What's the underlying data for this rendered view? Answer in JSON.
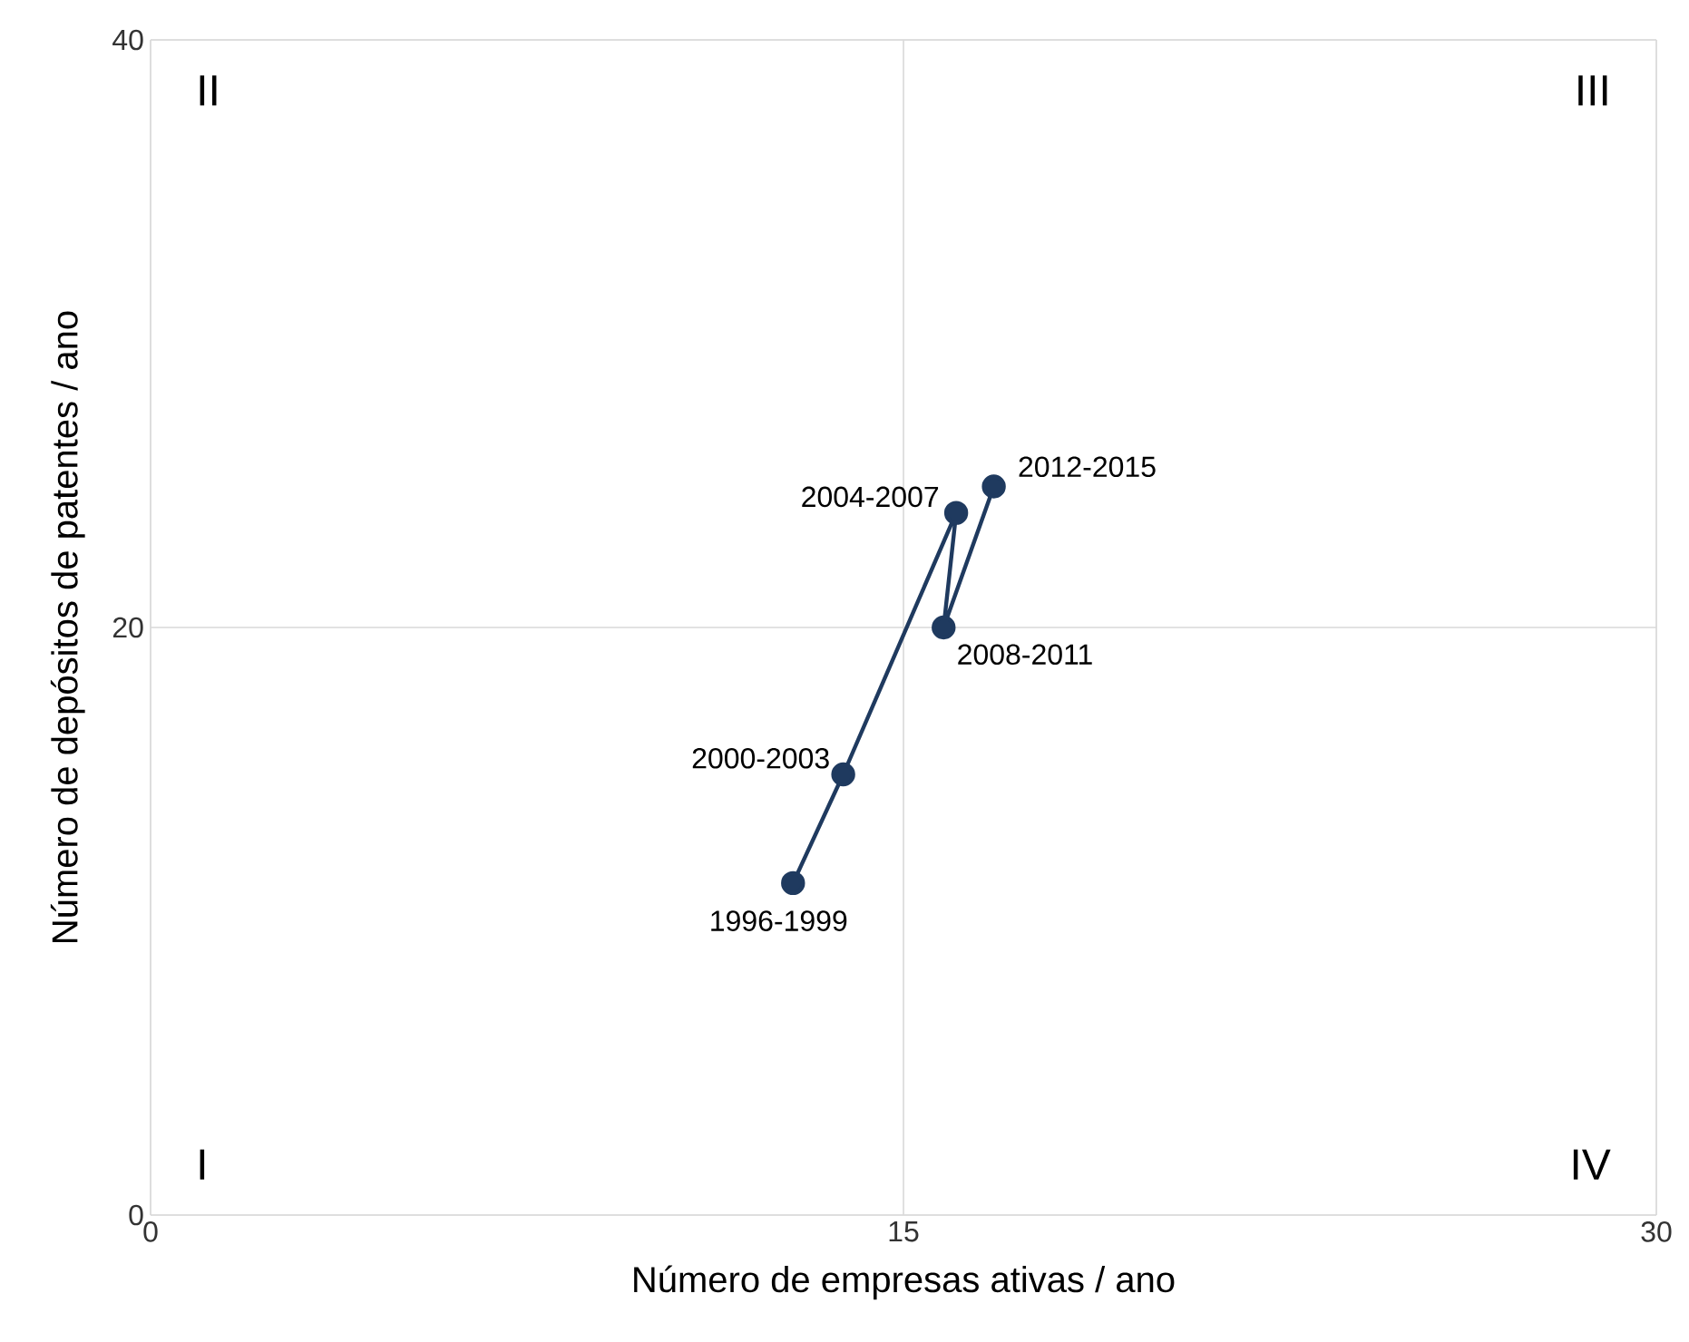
{
  "chart_data": {
    "type": "line",
    "xlabel": "Número de empresas ativas / ano",
    "ylabel": "Número de depósitos de patentes / ano",
    "x": [
      12.8,
      13.8,
      16.05,
      15.8,
      16.8
    ],
    "series": [
      {
        "color": "#1f3a5f",
        "values": [
          11.3,
          15,
          23.9,
          20,
          24.8
        ]
      }
    ],
    "xlim": [
      0,
      30
    ],
    "ylim": [
      0,
      40
    ],
    "xticks": [
      0,
      15,
      30
    ],
    "yticks": [
      0,
      20,
      40
    ],
    "grid": true,
    "marker": "circle",
    "line_style": "solid",
    "annotations": [
      {
        "text": "1996-1999",
        "x": 12.8,
        "y": 11.3
      },
      {
        "text": "2000-2003",
        "x": 13.8,
        "y": 15
      },
      {
        "text": "2004-2007",
        "x": 16.05,
        "y": 23.9
      },
      {
        "text": "2008-2011",
        "x": 15.8,
        "y": 20
      },
      {
        "text": "2012-2015",
        "x": 16.8,
        "y": 24.8
      },
      "I",
      "II",
      "III",
      "IV"
    ]
  }
}
